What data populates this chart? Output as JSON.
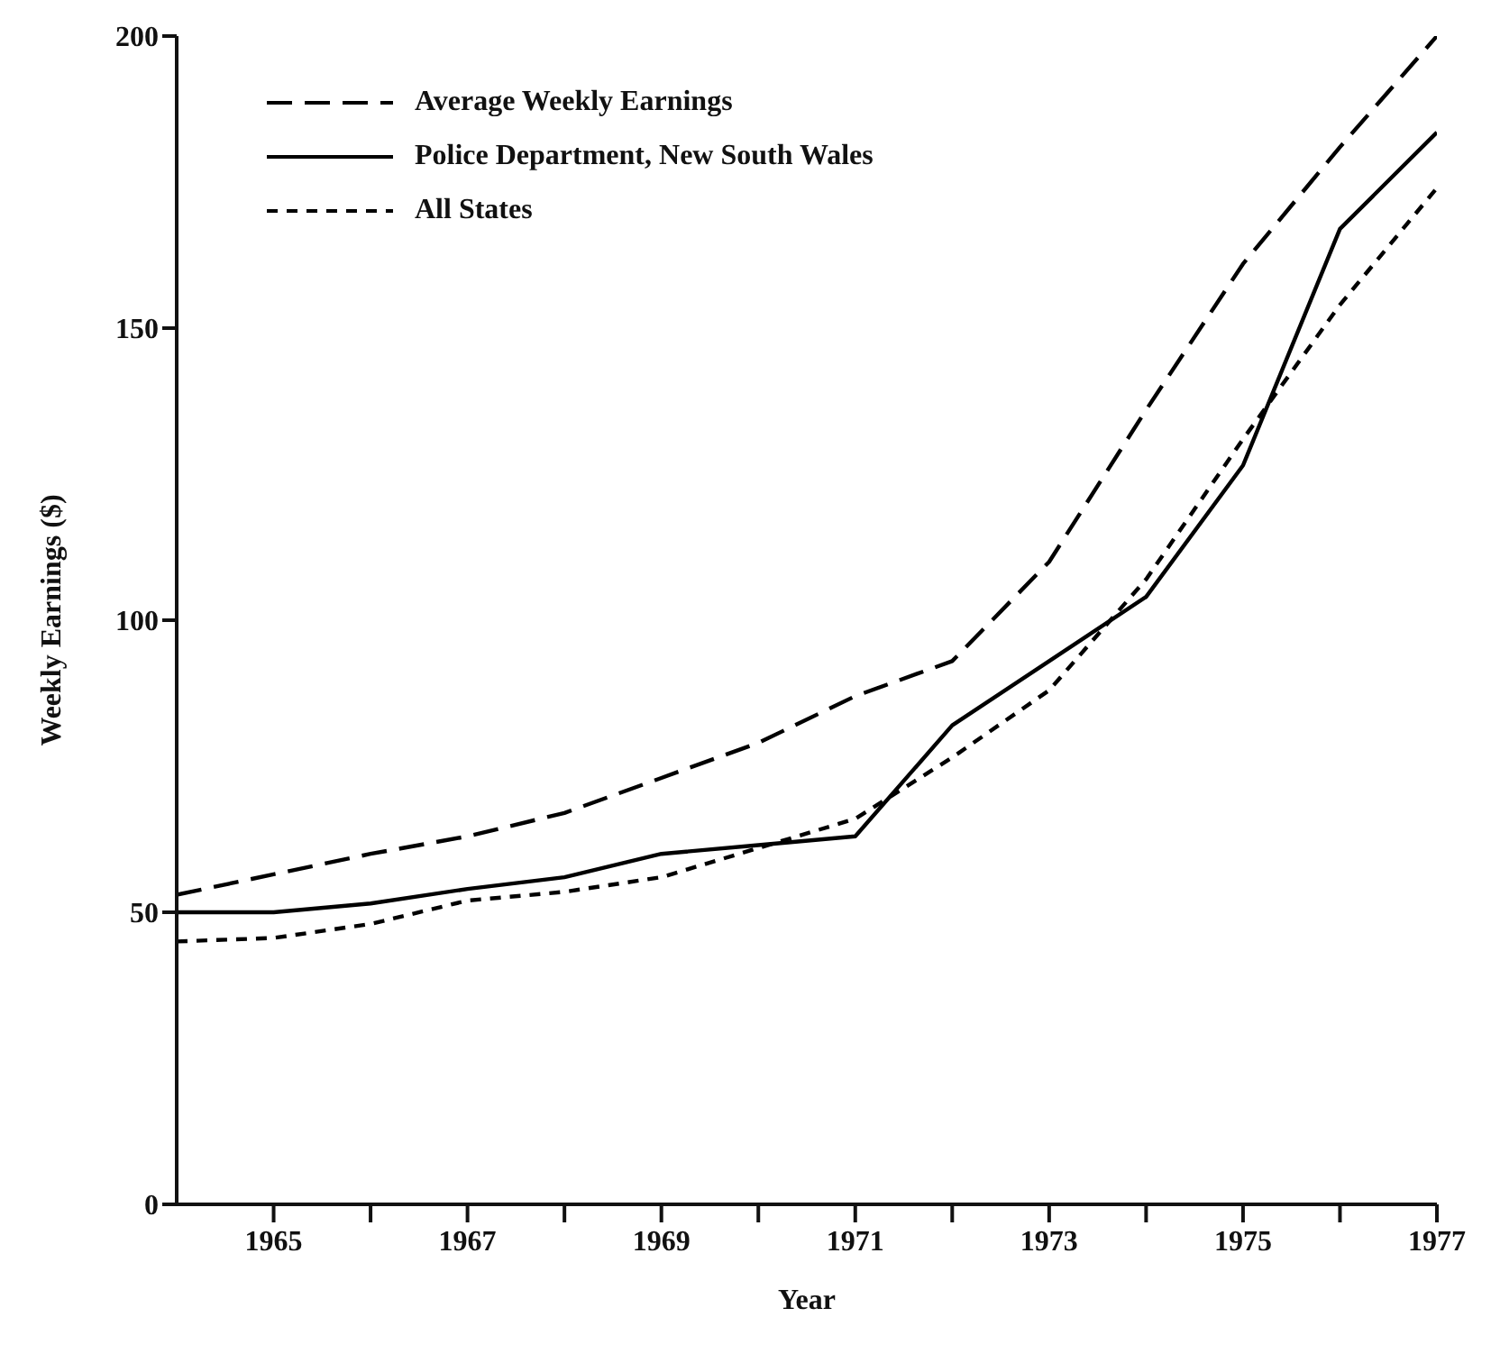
{
  "chart_data": {
    "type": "line",
    "xlabel": "Year",
    "ylabel": "Weekly Earnings ($)",
    "x": [
      1964,
      1965,
      1966,
      1967,
      1968,
      1969,
      1970,
      1971,
      1972,
      1973,
      1974,
      1975,
      1976,
      1977
    ],
    "series": [
      {
        "name": "Average Weekly Earnings",
        "color": "#000000",
        "line_style": "dashed",
        "values": [
          53,
          56.5,
          60,
          63,
          67,
          73,
          79,
          87,
          93,
          110,
          136,
          161,
          181,
          200
        ]
      },
      {
        "name": "Police Department, New South Wales",
        "color": "#000000",
        "line_style": "solid",
        "values": [
          50,
          50,
          51.5,
          54,
          56,
          60,
          61.5,
          63,
          82,
          93,
          104,
          126.5,
          167,
          183.5
        ]
      },
      {
        "name": "All States",
        "color": "#000000",
        "line_style": "dotted",
        "values": [
          45,
          45.6,
          48,
          52,
          53.5,
          56,
          61,
          66,
          76.5,
          88,
          107,
          131,
          154,
          174
        ]
      }
    ],
    "xlim": [
      1964,
      1977
    ],
    "xticks": [
      1965,
      {
        "value": 1966,
        "label": null
      },
      1967,
      {
        "value": 1968,
        "label": null
      },
      1969,
      {
        "value": 1970,
        "label": null
      },
      1971,
      {
        "value": 1972,
        "label": null
      },
      1973,
      {
        "value": 1974,
        "label": null
      },
      1975,
      {
        "value": 1976,
        "label": null
      },
      1977
    ],
    "ylim": [
      0,
      200
    ],
    "yticks": [
      0,
      50,
      100,
      150,
      200
    ],
    "grid": false,
    "legend": "top left",
    "marker": "none"
  }
}
